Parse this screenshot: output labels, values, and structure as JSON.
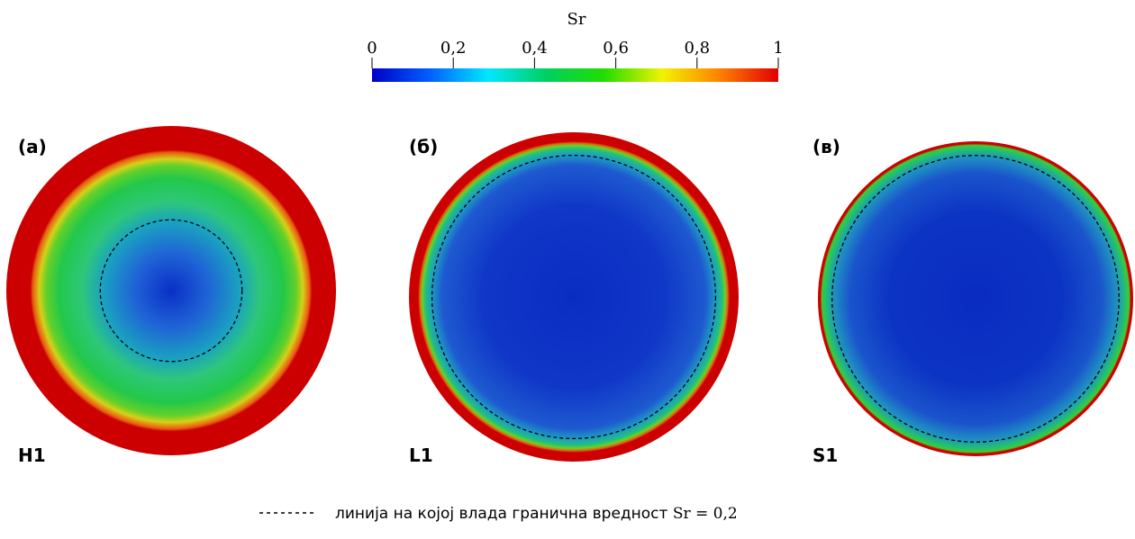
{
  "colorbar": {
    "title": "Sr",
    "ticks": [
      "0",
      "0,2",
      "0,4",
      "0,6",
      "0,8",
      "1"
    ],
    "tick_values": [
      0,
      0.2,
      0.4,
      0.6,
      0.8,
      1
    ],
    "colormap": [
      "#0000c8",
      "#0060ff",
      "#00e8ff",
      "#00d060",
      "#22dd00",
      "#f2f200",
      "#ff8000",
      "#e00000"
    ]
  },
  "panels": [
    {
      "label": "(а)",
      "name": "H1",
      "rings": [
        {
          "r": 0.0,
          "color": "#0a2fc6"
        },
        {
          "r": 0.22,
          "color": "#1f62d6"
        },
        {
          "r": 0.42,
          "color": "#1aa3c0"
        },
        {
          "r": 0.54,
          "color": "#2ec77a"
        },
        {
          "r": 0.68,
          "color": "#22c84a"
        },
        {
          "r": 0.76,
          "color": "#64d02a"
        },
        {
          "r": 0.8,
          "color": "#d6d018"
        },
        {
          "r": 0.84,
          "color": "#e85a10"
        },
        {
          "r": 0.855,
          "color": "#cc0000"
        },
        {
          "r": 1.0,
          "color": "#cc0000"
        }
      ],
      "threshold_r": 0.43
    },
    {
      "label": "(б)",
      "name": "L1",
      "rings": [
        {
          "r": 0.0,
          "color": "#0a2cc2"
        },
        {
          "r": 0.55,
          "color": "#1037c8"
        },
        {
          "r": 0.8,
          "color": "#1e5ad0"
        },
        {
          "r": 0.86,
          "color": "#1e9ac4"
        },
        {
          "r": 0.9,
          "color": "#20c080"
        },
        {
          "r": 0.92,
          "color": "#6fd020"
        },
        {
          "r": 0.935,
          "color": "#e06010"
        },
        {
          "r": 0.945,
          "color": "#cc0000"
        },
        {
          "r": 1.0,
          "color": "#cc0000"
        }
      ],
      "threshold_r": 0.86
    },
    {
      "label": "(в)",
      "name": "S1",
      "rings": [
        {
          "r": 0.0,
          "color": "#0a2cc0"
        },
        {
          "r": 0.55,
          "color": "#0c34c4"
        },
        {
          "r": 0.8,
          "color": "#1a55cc"
        },
        {
          "r": 0.9,
          "color": "#1f92c2"
        },
        {
          "r": 0.95,
          "color": "#22c070"
        },
        {
          "r": 0.975,
          "color": "#3fcc30"
        },
        {
          "r": 0.985,
          "color": "#cc0000"
        },
        {
          "r": 1.0,
          "color": "#cc0000"
        }
      ],
      "threshold_r": 0.91
    }
  ],
  "legend": {
    "text_prefix": "линија на којој влада гранична вредност ",
    "math": "Sr = 0,2"
  }
}
